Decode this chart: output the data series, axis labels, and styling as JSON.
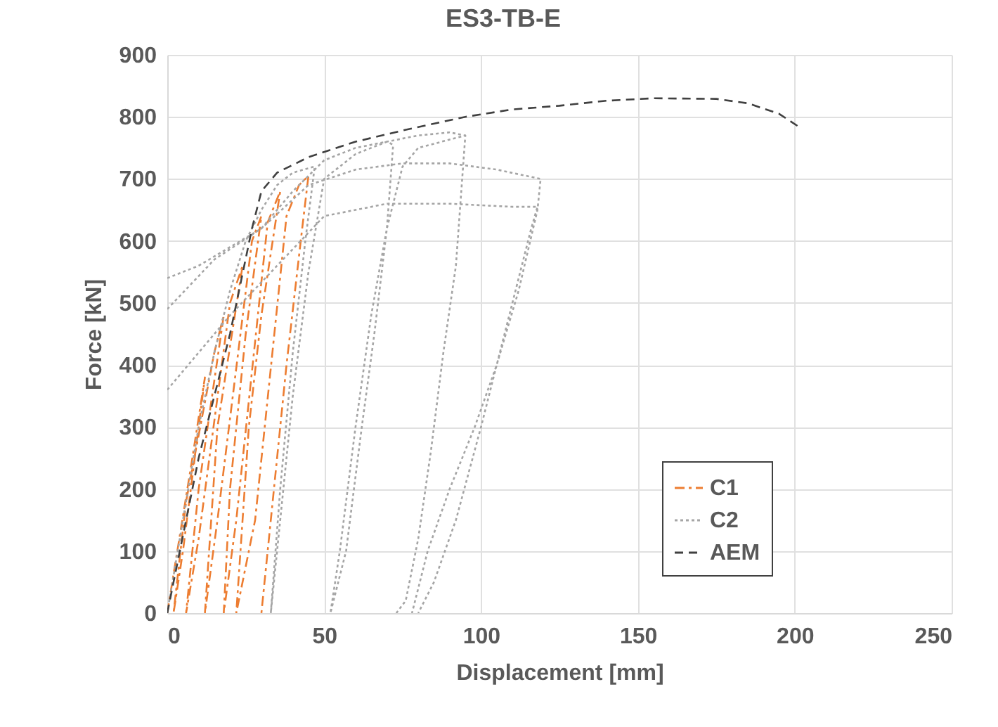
{
  "chart_data": {
    "type": "line",
    "title": "ES3-TB-E",
    "xlabel": "Displacement [mm]",
    "ylabel": "Force [kN]",
    "xlim": [
      0,
      250
    ],
    "xticks": [
      0,
      50,
      100,
      150,
      200,
      250
    ],
    "ylim": [
      0,
      900
    ],
    "yticks": [
      0,
      100,
      200,
      300,
      400,
      500,
      600,
      700,
      800,
      900
    ],
    "grid": true,
    "legend": "bottom right",
    "marker": "none",
    "series": [
      {
        "name": "C1",
        "color": "#ed7d31",
        "line_style": "dashdot",
        "x": [
          0,
          8,
          12,
          5,
          2,
          6,
          15,
          18,
          10,
          6,
          10,
          20,
          24,
          16,
          12,
          16,
          27,
          30,
          25,
          20,
          18,
          22,
          32,
          36,
          30,
          26,
          22,
          28,
          38,
          42,
          45,
          43,
          38,
          32,
          30
        ],
        "values": [
          0,
          250,
          380,
          100,
          0,
          180,
          420,
          480,
          200,
          0,
          120,
          500,
          560,
          300,
          0,
          150,
          600,
          640,
          450,
          200,
          0,
          150,
          630,
          680,
          480,
          300,
          0,
          150,
          640,
          690,
          705,
          620,
          400,
          100,
          0
        ]
      },
      {
        "name": "C2",
        "color": "#a5a5a5",
        "line_style": "dotted",
        "x": [
          0,
          5,
          10,
          15,
          20,
          25,
          30,
          35,
          40,
          47,
          44,
          40,
          36,
          33,
          36,
          40,
          45,
          50,
          60,
          70,
          72,
          70,
          66,
          62,
          57,
          52,
          55,
          60,
          65,
          70,
          75,
          80,
          95,
          94,
          92,
          88,
          84,
          80,
          76,
          73,
          null,
          0,
          10,
          20,
          30,
          40,
          50,
          60,
          70,
          80,
          90,
          95,
          null,
          0,
          15,
          30,
          45,
          60,
          75,
          90,
          105,
          119,
          118,
          112,
          105,
          98,
          90,
          83,
          78,
          null,
          0,
          20,
          35,
          50,
          70,
          90,
          110,
          118,
          116,
          110,
          100,
          92,
          85,
          80
        ],
        "values": [
          0,
          150,
          300,
          420,
          520,
          600,
          650,
          690,
          710,
          720,
          600,
          420,
          200,
          0,
          150,
          350,
          550,
          700,
          740,
          760,
          755,
          620,
          450,
          300,
          100,
          0,
          100,
          300,
          480,
          620,
          720,
          750,
          770,
          700,
          560,
          420,
          260,
          120,
          20,
          0,
          null,
          540,
          560,
          590,
          620,
          680,
          730,
          750,
          760,
          770,
          775,
          770,
          null,
          490,
          570,
          620,
          690,
          715,
          725,
          725,
          715,
          700,
          650,
          520,
          400,
          300,
          200,
          100,
          0,
          null,
          360,
          480,
          560,
          640,
          660,
          660,
          655,
          655,
          620,
          500,
          300,
          150,
          50,
          0
        ]
      },
      {
        "name": "AEM",
        "color": "#404040",
        "line_style": "dashed",
        "x": [
          0,
          10,
          20,
          27,
          30,
          35,
          45,
          60,
          75,
          95,
          110,
          125,
          140,
          155,
          175,
          185,
          195,
          201
        ],
        "values": [
          0,
          250,
          450,
          620,
          680,
          710,
          735,
          760,
          778,
          800,
          812,
          818,
          826,
          830,
          829,
          822,
          805,
          785
        ]
      }
    ]
  }
}
